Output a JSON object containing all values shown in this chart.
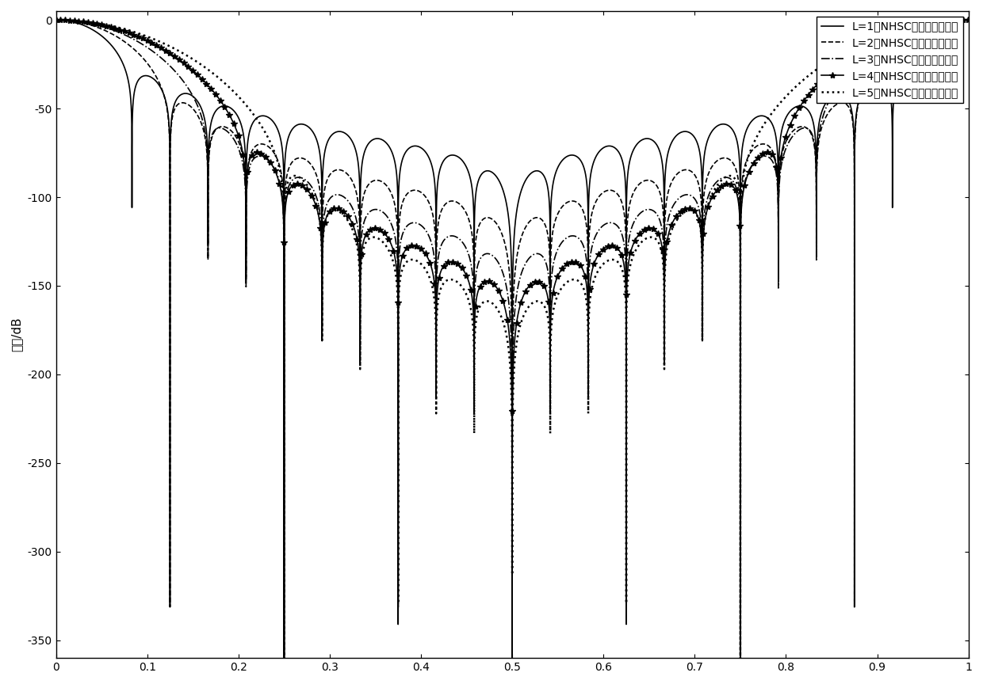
{
  "title": "",
  "xlabel": "",
  "ylabel": "幅値/dB",
  "xlim": [
    0,
    1
  ],
  "ylim": [
    -360,
    5
  ],
  "yticks": [
    0,
    -50,
    -100,
    -150,
    -200,
    -250,
    -300,
    -350
  ],
  "xticks": [
    0,
    0.1,
    0.2,
    0.3,
    0.4,
    0.5,
    0.6,
    0.7,
    0.8,
    0.9,
    1.0
  ],
  "xtick_labels": [
    "0",
    "0.1",
    "0.2",
    "0.3",
    "0.4",
    "0.5",
    "0.6",
    "0.7",
    "0.8",
    "0.9",
    "1"
  ],
  "legend_labels": [
    "L=1的NHSC窗幅频响应曲线",
    "L=2的NHSC窗幅频响应曲线",
    "L=3的NHSC窗幅频响应曲线",
    "L=4的NHSC窗幅频响应曲线",
    "L=5的NHSC窗幅频响应曲线"
  ],
  "line_styles": [
    "-",
    "--",
    "-.",
    "-",
    ":"
  ],
  "line_widths": [
    1.2,
    1.2,
    1.2,
    1.2,
    1.8
  ],
  "line_colors": [
    "black",
    "black",
    "black",
    "black",
    "black"
  ],
  "markers": [
    null,
    null,
    null,
    "*",
    null
  ],
  "marker_sizes": [
    null,
    null,
    null,
    6,
    null
  ],
  "L_values": [
    1,
    2,
    3,
    4,
    5
  ],
  "background_color": "white",
  "legend_fontsize": 10,
  "axis_fontsize": 11,
  "tick_fontsize": 10
}
